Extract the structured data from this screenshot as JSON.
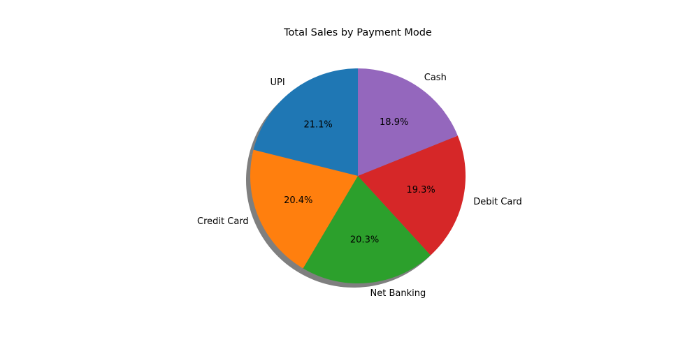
{
  "chart_data": {
    "type": "pie",
    "title": "Total Sales by Payment Mode",
    "labels": [
      "UPI",
      "Credit Card",
      "Net Banking",
      "Debit Card",
      "Cash"
    ],
    "values": [
      21.1,
      20.4,
      20.3,
      19.3,
      18.9
    ],
    "percent_labels": [
      "21.1%",
      "20.4%",
      "20.3%",
      "19.3%",
      "18.9%"
    ],
    "colors": [
      "#1f77b4",
      "#ff7f0e",
      "#2ca02c",
      "#d62728",
      "#9467bd"
    ],
    "start_angle_deg": 90,
    "direction": "counterclockwise",
    "shadow": true
  }
}
